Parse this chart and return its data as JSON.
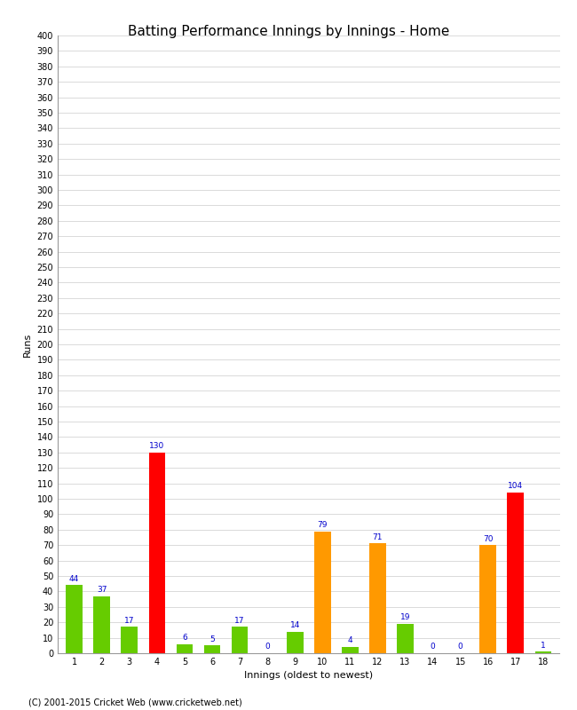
{
  "title": "Batting Performance Innings by Innings - Home",
  "xlabel": "Innings (oldest to newest)",
  "ylabel": "Runs",
  "categories": [
    "1",
    "2",
    "3",
    "4",
    "5",
    "6",
    "7",
    "8",
    "9",
    "10",
    "11",
    "12",
    "13",
    "14",
    "15",
    "16",
    "17",
    "18"
  ],
  "values": [
    44,
    37,
    17,
    130,
    6,
    5,
    17,
    0,
    14,
    79,
    4,
    71,
    19,
    0,
    0,
    70,
    104,
    1
  ],
  "colors": [
    "#66cc00",
    "#66cc00",
    "#66cc00",
    "#ff0000",
    "#66cc00",
    "#66cc00",
    "#66cc00",
    "#66cc00",
    "#66cc00",
    "#ff9900",
    "#66cc00",
    "#ff9900",
    "#66cc00",
    "#66cc00",
    "#66cc00",
    "#ff9900",
    "#ff0000",
    "#66cc00"
  ],
  "ylim": [
    0,
    400
  ],
  "value_color": "#0000cc",
  "value_fontsize": 6.5,
  "bar_width": 0.6,
  "background_color": "#ffffff",
  "grid_color": "#cccccc",
  "footer": "(C) 2001-2015 Cricket Web (www.cricketweb.net)",
  "title_fontsize": 11,
  "axis_label_fontsize": 8,
  "tick_fontsize": 7
}
